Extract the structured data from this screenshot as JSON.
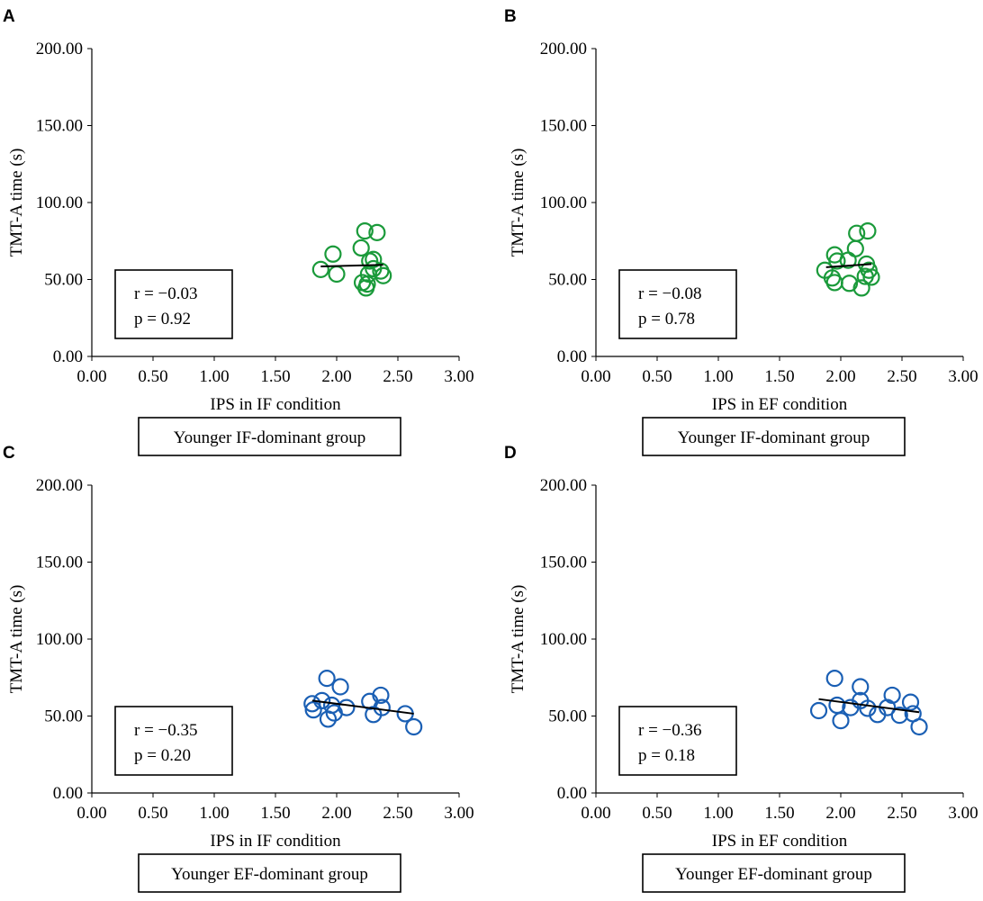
{
  "chart_data": [
    {
      "type": "scatter",
      "panel": "A",
      "xlabel": "IPS in IF condition",
      "ylabel": "TMT-A time (s)",
      "xlim": [
        0,
        3
      ],
      "ylim": [
        0,
        200
      ],
      "xticks": [
        "0.00",
        "0.50",
        "1.00",
        "1.50",
        "2.00",
        "2.50",
        "3.00"
      ],
      "yticks": [
        "0.00",
        "50.00",
        "100.00",
        "150.00",
        "200.00"
      ],
      "stats": {
        "r": "r = −0.03",
        "p": "p = 0.92"
      },
      "group": "Younger IF-dominant group",
      "marker_color": "#1a9a3a",
      "points": [
        [
          1.87,
          56.5
        ],
        [
          1.97,
          66.5
        ],
        [
          2.0,
          53.5
        ],
        [
          2.2,
          70.5
        ],
        [
          2.23,
          81.5
        ],
        [
          2.21,
          48.0
        ],
        [
          2.24,
          44.5
        ],
        [
          2.26,
          53.5
        ],
        [
          2.27,
          62.0
        ],
        [
          2.3,
          57.0
        ],
        [
          2.3,
          63.0
        ],
        [
          2.33,
          80.5
        ],
        [
          2.36,
          55.5
        ],
        [
          2.38,
          52.5
        ],
        [
          2.25,
          47.0
        ]
      ],
      "fit": {
        "x": [
          1.87,
          2.38
        ],
        "y": [
          58.5,
          59.5
        ]
      }
    },
    {
      "type": "scatter",
      "panel": "B",
      "xlabel": "IPS in EF condition",
      "ylabel": "TMT-A time (s)",
      "xlim": [
        0,
        3
      ],
      "ylim": [
        0,
        200
      ],
      "xticks": [
        "0.00",
        "0.50",
        "1.00",
        "1.50",
        "2.00",
        "2.50",
        "3.00"
      ],
      "yticks": [
        "0.00",
        "50.00",
        "100.00",
        "150.00",
        "200.00"
      ],
      "stats": {
        "r": "r = −0.08",
        "p": "p = 0.78"
      },
      "group": "Younger IF-dominant group",
      "marker_color": "#1a9a3a",
      "points": [
        [
          1.87,
          56.0
        ],
        [
          1.93,
          51.0
        ],
        [
          1.95,
          66.0
        ],
        [
          1.95,
          48.0
        ],
        [
          1.97,
          62.0
        ],
        [
          2.06,
          62.5
        ],
        [
          2.07,
          47.5
        ],
        [
          2.12,
          70.0
        ],
        [
          2.13,
          80.0
        ],
        [
          2.17,
          44.5
        ],
        [
          2.2,
          52.0
        ],
        [
          2.22,
          81.5
        ],
        [
          2.23,
          56.0
        ],
        [
          2.25,
          51.5
        ],
        [
          2.21,
          60.0
        ]
      ],
      "fit": {
        "x": [
          1.88,
          2.25
        ],
        "y": [
          58.0,
          60.0
        ]
      }
    },
    {
      "type": "scatter",
      "panel": "C",
      "xlabel": "IPS in IF condition",
      "ylabel": "TMT-A time (s)",
      "xlim": [
        0,
        3
      ],
      "ylim": [
        0,
        200
      ],
      "xticks": [
        "0.00",
        "0.50",
        "1.00",
        "1.50",
        "2.00",
        "2.50",
        "3.00"
      ],
      "yticks": [
        "0.00",
        "50.00",
        "100.00",
        "150.00",
        "200.00"
      ],
      "stats": {
        "r": "r = −0.35",
        "p": "p = 0.20"
      },
      "group": "Younger EF-dominant group",
      "marker_color": "#1a5fb4",
      "points": [
        [
          1.8,
          58.0
        ],
        [
          1.81,
          54.0
        ],
        [
          1.88,
          60.0
        ],
        [
          1.92,
          74.5
        ],
        [
          1.93,
          48.0
        ],
        [
          1.96,
          57.0
        ],
        [
          1.98,
          52.0
        ],
        [
          2.03,
          69.0
        ],
        [
          2.08,
          55.5
        ],
        [
          2.27,
          59.5
        ],
        [
          2.3,
          51.0
        ],
        [
          2.36,
          63.5
        ],
        [
          2.37,
          55.5
        ],
        [
          2.56,
          51.5
        ],
        [
          2.63,
          43.0
        ]
      ],
      "fit": {
        "x": [
          1.8,
          2.63
        ],
        "y": [
          60.0,
          51.5
        ]
      }
    },
    {
      "type": "scatter",
      "panel": "D",
      "xlabel": "IPS in EF condition",
      "ylabel": "TMT-A time (s)",
      "xlim": [
        0,
        3
      ],
      "ylim": [
        0,
        200
      ],
      "xticks": [
        "0.00",
        "0.50",
        "1.00",
        "1.50",
        "2.00",
        "2.50",
        "3.00"
      ],
      "yticks": [
        "0.00",
        "50.00",
        "100.00",
        "150.00",
        "200.00"
      ],
      "stats": {
        "r": "r = −0.36",
        "p": "p = 0.18"
      },
      "group": "Younger EF-dominant group",
      "marker_color": "#1a5fb4",
      "points": [
        [
          1.82,
          53.5
        ],
        [
          1.95,
          74.5
        ],
        [
          1.97,
          57.0
        ],
        [
          2.0,
          47.0
        ],
        [
          2.08,
          55.5
        ],
        [
          2.16,
          69.0
        ],
        [
          2.16,
          60.0
        ],
        [
          2.22,
          55.0
        ],
        [
          2.3,
          51.0
        ],
        [
          2.38,
          55.5
        ],
        [
          2.42,
          63.5
        ],
        [
          2.48,
          50.5
        ],
        [
          2.57,
          59.0
        ],
        [
          2.59,
          51.5
        ],
        [
          2.64,
          43.0
        ]
      ],
      "fit": {
        "x": [
          1.82,
          2.64
        ],
        "y": [
          61.0,
          52.5
        ]
      }
    }
  ]
}
